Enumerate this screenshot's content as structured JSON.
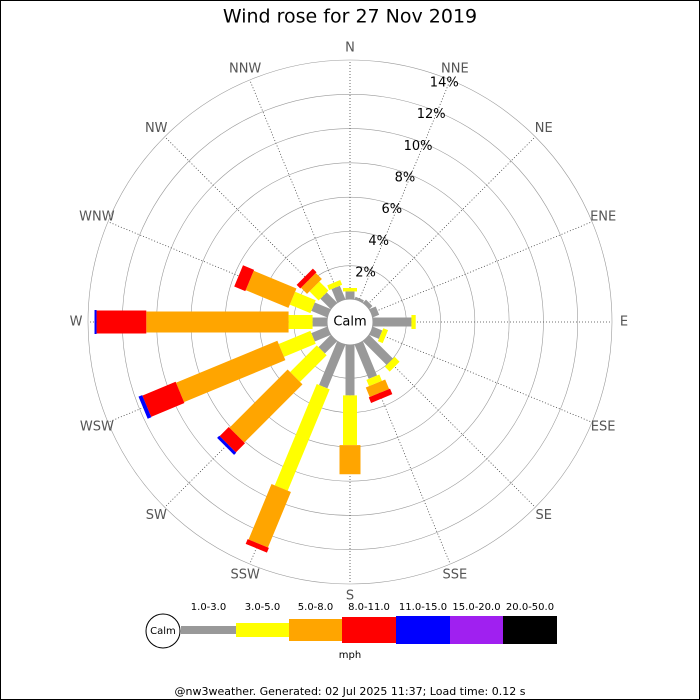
{
  "chart_data": {
    "type": "windrose",
    "title": "Wind rose for 27 Nov 2019",
    "calm_label": "Calm",
    "categories": [
      "N",
      "NNE",
      "NE",
      "ENE",
      "E",
      "ESE",
      "SE",
      "SSE",
      "S",
      "SSW",
      "SW",
      "WSW",
      "W",
      "WNW",
      "NW",
      "NNW"
    ],
    "series": [
      {
        "name": "1.0-3.0",
        "color": "#999999",
        "values": [
          0.5,
          0.2,
          0.3,
          0.45,
          2.3,
          0.65,
          2.0,
          2.2,
          3.0,
          2.8,
          1.05,
          1.05,
          0.9,
          1.05,
          0.9,
          0.9
        ]
      },
      {
        "name": "3.0-5.0",
        "color": "#ffff00",
        "values": [
          0.2,
          0,
          0,
          0,
          0.25,
          0.3,
          0.4,
          0.4,
          2.9,
          6.4,
          2.2,
          2.0,
          1.4,
          1.3,
          0.75,
          0.3
        ]
      },
      {
        "name": "5.0-8.0",
        "color": "#ffa500",
        "values": [
          0,
          0,
          0,
          0,
          0,
          0,
          0,
          0.6,
          1.7,
          3.5,
          4.8,
          6.4,
          8.3,
          2.7,
          0.5,
          0
        ]
      },
      {
        "name": "8.0-11.0",
        "color": "#ff0000",
        "values": [
          0,
          0,
          0,
          0,
          0,
          0,
          0,
          0.35,
          0,
          0.3,
          0.75,
          2.1,
          2.9,
          0.7,
          0.3,
          0
        ]
      },
      {
        "name": "11.0-15.0",
        "color": "#0000ff",
        "values": [
          0,
          0,
          0,
          0,
          0,
          0,
          0,
          0,
          0,
          0,
          0.18,
          0.23,
          0.12,
          0,
          0,
          0
        ]
      },
      {
        "name": "15.0-20.0",
        "color": "#a020f0",
        "values": [
          0,
          0,
          0,
          0,
          0,
          0,
          0,
          0,
          0,
          0,
          0,
          0,
          0,
          0,
          0,
          0
        ]
      },
      {
        "name": "20.0-50.0",
        "color": "#000000",
        "values": [
          0,
          0,
          0,
          0,
          0,
          0,
          0,
          0,
          0,
          0,
          0,
          0,
          0,
          0,
          0,
          0
        ]
      }
    ],
    "rlim": [
      0,
      14
    ],
    "rticks": [
      {
        "value": 2,
        "label": "2%"
      },
      {
        "value": 4,
        "label": "4%"
      },
      {
        "value": 6,
        "label": "6%"
      },
      {
        "value": 8,
        "label": "8%"
      },
      {
        "value": 10,
        "label": "10%"
      },
      {
        "value": 12,
        "label": "12%"
      },
      {
        "value": 14,
        "label": "14%"
      }
    ],
    "legend_title": "mph",
    "footer": "@nw3weather. Generated: 02 Jul 2025 11:37; Load time: 0.12 s"
  }
}
